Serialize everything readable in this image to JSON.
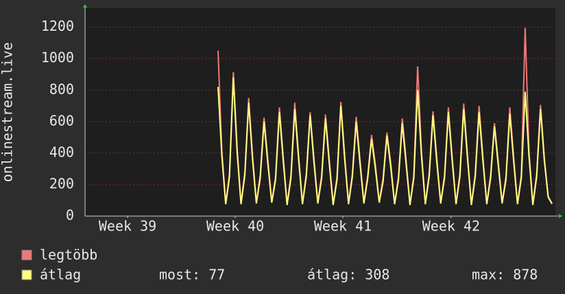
{
  "chart_data": {
    "type": "line",
    "y_label": "onlinestream.live",
    "x": [
      8.66,
      8.91,
      9.16,
      9.41,
      9.66,
      9.91,
      10.16,
      10.41,
      10.66,
      10.91,
      11.16,
      11.41,
      11.66,
      11.91,
      12.16,
      12.41,
      12.66,
      12.91,
      13.16,
      13.41,
      13.66,
      13.91,
      14.16,
      14.41,
      14.66,
      14.91,
      15.16,
      15.41,
      15.66,
      15.91,
      16.16,
      16.41,
      16.66,
      16.91,
      17.16,
      17.41,
      17.66,
      17.91,
      18.16,
      18.41,
      18.66,
      18.91,
      19.16,
      19.41,
      19.66,
      19.91,
      20.16,
      20.41,
      20.66,
      20.91,
      21.16,
      21.41,
      21.66,
      21.91,
      22.16,
      22.41,
      22.66,
      22.91,
      23.16,
      23.41,
      23.66,
      23.91,
      24.16,
      24.41,
      24.66,
      24.91,
      25.16,
      25.41,
      25.66,
      25.91,
      26.16,
      26.41,
      26.66,
      26.91,
      27.16,
      27.41,
      27.66,
      27.91,
      28.16,
      28.41,
      28.66,
      28.91,
      29.16,
      29.41,
      29.66,
      29.91,
      30.16,
      30.41
    ],
    "series": [
      {
        "name": "legtöbb",
        "color": "#f07878",
        "values": [
          1050,
          410,
          80,
          270,
          915,
          430,
          80,
          280,
          750,
          385,
          85,
          260,
          625,
          355,
          90,
          250,
          690,
          375,
          75,
          260,
          720,
          385,
          80,
          270,
          660,
          365,
          85,
          260,
          645,
          355,
          75,
          250,
          725,
          385,
          80,
          270,
          630,
          355,
          85,
          260,
          515,
          325,
          90,
          240,
          530,
          335,
          80,
          250,
          620,
          355,
          75,
          260,
          950,
          410,
          80,
          270,
          665,
          365,
          85,
          260,
          690,
          375,
          80,
          270,
          715,
          385,
          75,
          270,
          700,
          375,
          80,
          260,
          590,
          345,
          85,
          250,
          690,
          375,
          80,
          260,
          1195,
          410,
          75,
          270,
          705,
          370,
          125,
          80
        ]
      },
      {
        "name": "átlag",
        "color": "#ffff80",
        "values": [
          820,
          380,
          75,
          250,
          880,
          400,
          75,
          260,
          720,
          360,
          80,
          240,
          600,
          330,
          85,
          230,
          660,
          350,
          70,
          240,
          680,
          360,
          75,
          250,
          640,
          340,
          80,
          240,
          620,
          330,
          70,
          230,
          700,
          360,
          75,
          250,
          600,
          330,
          80,
          240,
          490,
          300,
          85,
          220,
          510,
          310,
          75,
          230,
          590,
          330,
          70,
          240,
          800,
          380,
          75,
          250,
          640,
          340,
          80,
          240,
          660,
          350,
          75,
          250,
          680,
          360,
          70,
          250,
          660,
          350,
          75,
          240,
          570,
          320,
          80,
          230,
          650,
          350,
          75,
          240,
          790,
          380,
          70,
          250,
          680,
          350,
          120,
          77
        ]
      }
    ],
    "legend_stats": [
      "most: 77",
      "átlag: 308",
      "max: 878"
    ],
    "xlim": [
      0,
      30.63
    ],
    "xticks": [
      {
        "value": 2.77,
        "label": "Week 39"
      },
      {
        "value": 9.78,
        "label": "Week 40"
      },
      {
        "value": 16.79,
        "label": "Week 41"
      },
      {
        "value": 23.84,
        "label": "Week 42"
      }
    ],
    "ylim": [
      0,
      1320
    ],
    "yticks": [
      0,
      200,
      400,
      600,
      800,
      1000,
      1200
    ],
    "grid": true
  }
}
